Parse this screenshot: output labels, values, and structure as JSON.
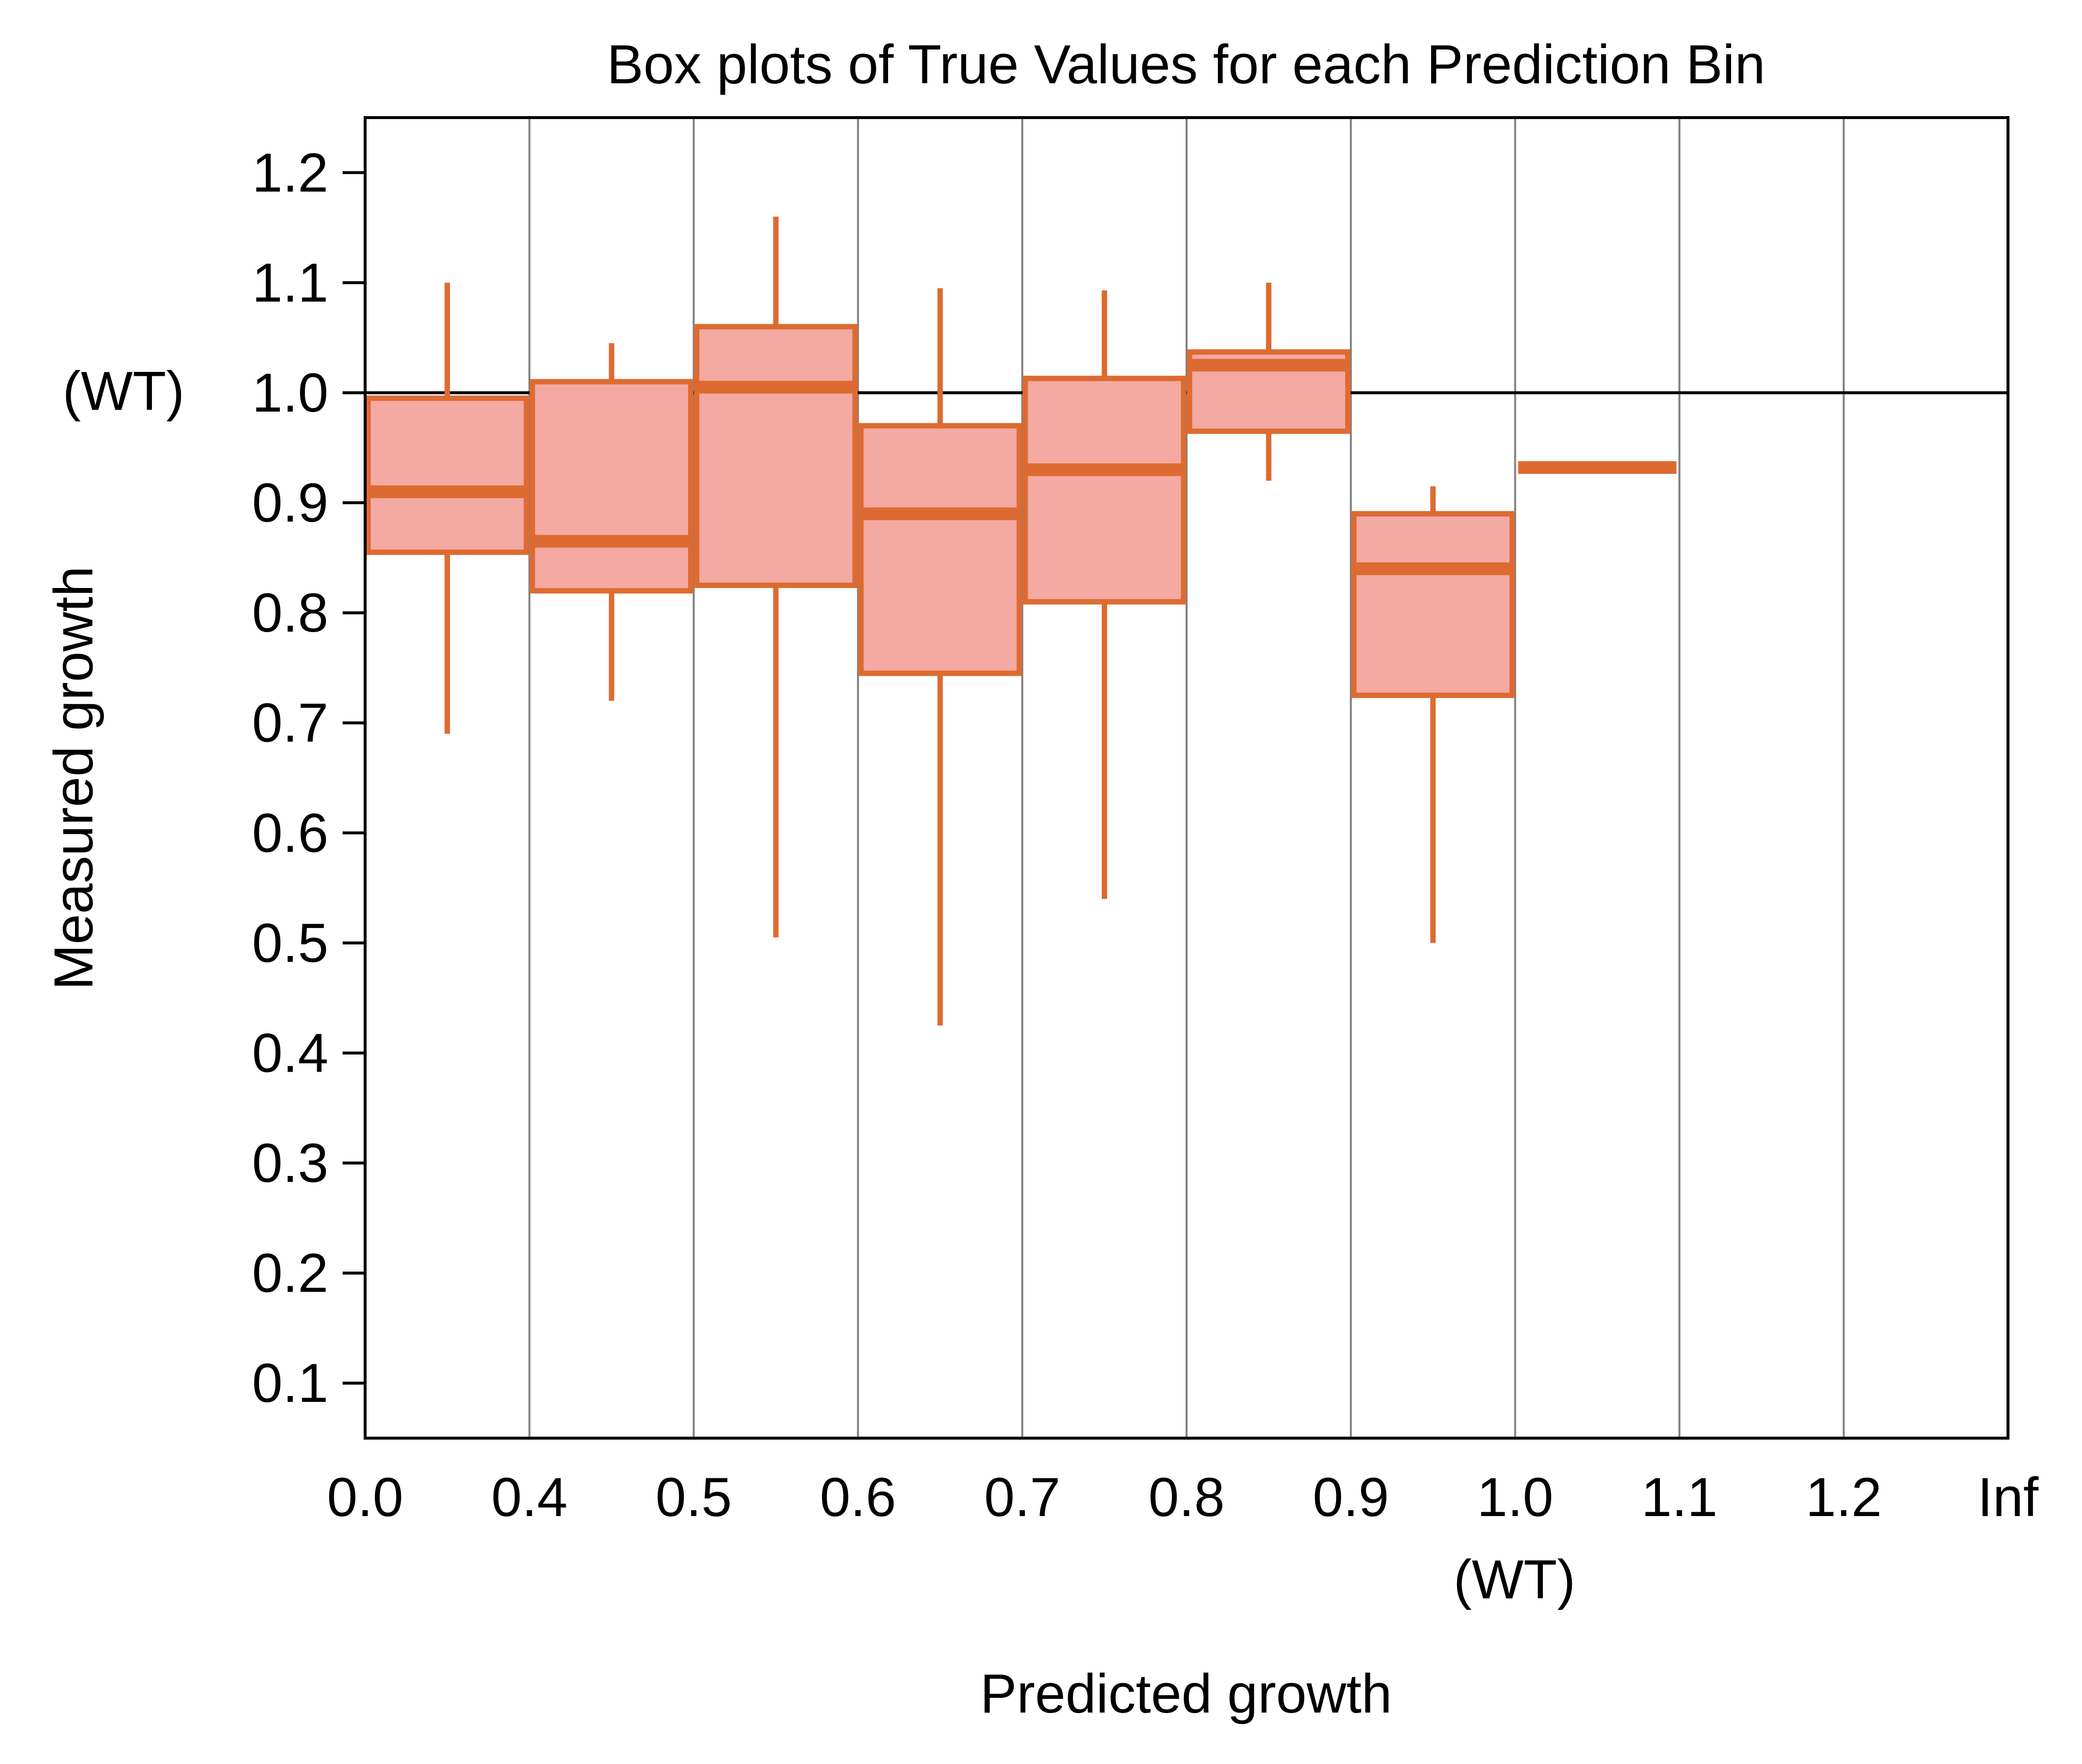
{
  "chart_data": {
    "type": "box",
    "title": "Box plots of True Values for each Prediction Bin",
    "xlabel": "Predicted growth",
    "ylabel": "Measured growth",
    "x_tick_labels": [
      "0.0",
      "0.4",
      "0.5",
      "0.6",
      "0.7",
      "0.8",
      "0.9",
      "1.0",
      "1.1",
      "1.2",
      "Inf"
    ],
    "x_wt_label": "(WT)",
    "y_ticks": [
      0.1,
      0.2,
      0.3,
      0.4,
      0.5,
      0.6,
      0.7,
      0.8,
      0.9,
      1.0,
      1.1,
      1.2
    ],
    "y_tick_labels": [
      "0.1",
      "0.2",
      "0.3",
      "0.4",
      "0.5",
      "0.6",
      "0.7",
      "0.8",
      "0.9",
      "1.0",
      "1.1",
      "1.2"
    ],
    "y_wt_label": "(WT)",
    "ylim": [
      0.05,
      1.25
    ],
    "wt_reference_line": 1.0,
    "grid": "vertical",
    "colors": {
      "box_fill": "#f4a9a3",
      "box_edge": "#dd6b31",
      "grid": "#808080",
      "reference": "#000000"
    },
    "boxes": [
      {
        "bin": "0.0-0.4",
        "whisker_low": 0.69,
        "q1": 0.855,
        "median": 0.91,
        "q3": 0.995,
        "whisker_high": 1.1
      },
      {
        "bin": "0.4-0.5",
        "whisker_low": 0.72,
        "q1": 0.82,
        "median": 0.865,
        "q3": 1.01,
        "whisker_high": 1.045
      },
      {
        "bin": "0.5-0.6",
        "whisker_low": 0.505,
        "q1": 0.825,
        "median": 1.005,
        "q3": 1.06,
        "whisker_high": 1.16
      },
      {
        "bin": "0.6-0.7",
        "whisker_low": 0.425,
        "q1": 0.745,
        "median": 0.89,
        "q3": 0.97,
        "whisker_high": 1.095
      },
      {
        "bin": "0.7-0.8",
        "whisker_low": 0.54,
        "q1": 0.81,
        "median": 0.93,
        "q3": 1.013,
        "whisker_high": 1.093
      },
      {
        "bin": "0.8-0.9",
        "whisker_low": 0.92,
        "q1": 0.965,
        "median": 1.025,
        "q3": 1.037,
        "whisker_high": 1.1
      },
      {
        "bin": "0.9-1.0",
        "whisker_low": 0.5,
        "q1": 0.725,
        "median": 0.84,
        "q3": 0.89,
        "whisker_high": 0.915
      },
      {
        "bin": "1.0-1.1",
        "whisker_low": 0.932,
        "q1": 0.932,
        "median": 0.932,
        "q3": 0.932,
        "whisker_high": 0.932
      }
    ]
  }
}
